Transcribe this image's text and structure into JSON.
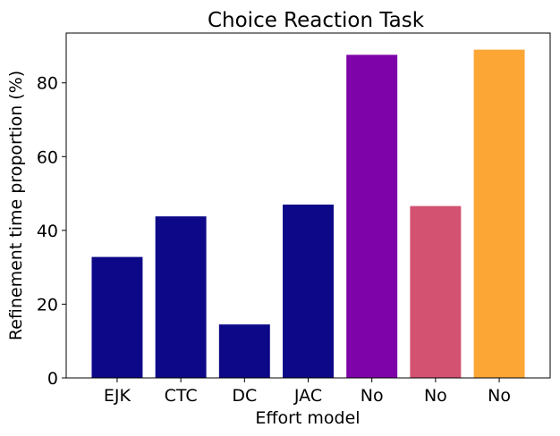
{
  "chart_data": {
    "type": "bar",
    "title": "Choice Reaction Task",
    "xlabel": "Effort model",
    "ylabel": "Refinement time proportion (%)",
    "categories": [
      "EJK",
      "CTC",
      "DC",
      "JAC",
      "No",
      "No",
      "No"
    ],
    "values": [
      32.8,
      43.8,
      14.5,
      47.0,
      87.6,
      46.6,
      89.0
    ],
    "colors": [
      "#0d0887",
      "#0d0887",
      "#0d0887",
      "#0d0887",
      "#7e03a8",
      "#d35171",
      "#fca636"
    ],
    "ylim": [
      0,
      93.5
    ],
    "yticks": [
      0,
      20,
      40,
      60,
      80
    ],
    "grid": false,
    "legend": "none"
  }
}
